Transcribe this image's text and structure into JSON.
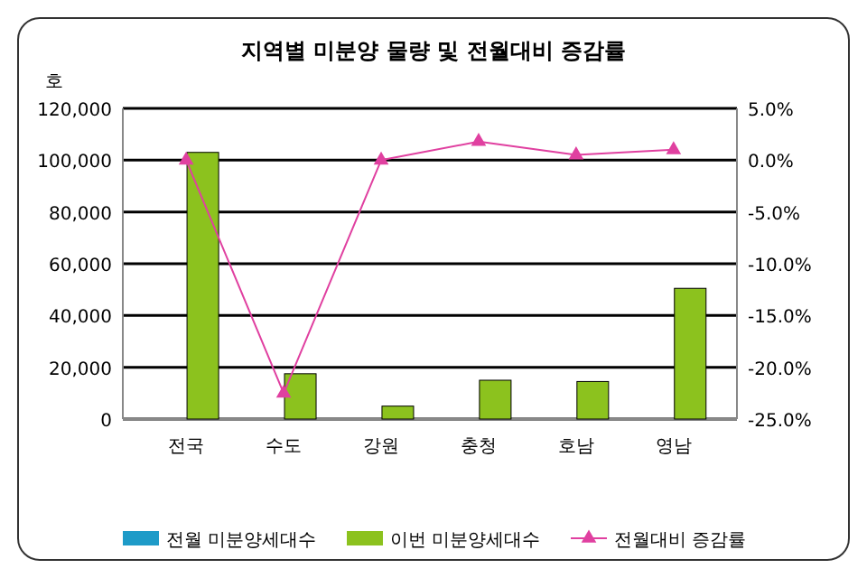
{
  "chart_data": {
    "type": "bar",
    "title": "지역별 미분양 물량 및 전월대비 증감률",
    "ylabel": "호",
    "categories": [
      "전국",
      "수도",
      "강원",
      "충청",
      "호남",
      "영남"
    ],
    "series": [
      {
        "name": "전월 미분양세대수",
        "color": "#1e9bc8",
        "values": [
          null,
          null,
          null,
          null,
          null,
          null
        ]
      },
      {
        "name": "이번 미분양세대수",
        "color": "#8cc21e",
        "values": [
          103000,
          17500,
          5000,
          15000,
          14500,
          50500
        ]
      },
      {
        "name": "전월대비 증감률",
        "type": "line",
        "axis": "y2",
        "color": "#e040a0",
        "marker": "triangle",
        "values": [
          0,
          -22.5,
          0,
          1.8,
          0.5,
          1.0
        ]
      }
    ],
    "ylim": [
      0,
      120000
    ],
    "yticks": [
      {
        "value": 0,
        "label": "0"
      },
      {
        "value": 20000,
        "label": "20,000"
      },
      {
        "value": 40000,
        "label": "40,000"
      },
      {
        "value": 60000,
        "label": "60,000"
      },
      {
        "value": 80000,
        "label": "80,000"
      },
      {
        "value": 100000,
        "label": "100,000"
      },
      {
        "value": 120000,
        "label": "120,000"
      }
    ],
    "y2lim": [
      -25,
      5
    ],
    "y2ticks": [
      {
        "value": 5,
        "label": "5.0%"
      },
      {
        "value": 0,
        "label": "0.0%"
      },
      {
        "value": -5,
        "label": "-5.0%"
      },
      {
        "value": -10,
        "label": "-10.0%"
      },
      {
        "value": -15,
        "label": "-15.0%"
      },
      {
        "value": -20,
        "label": "-20.0%"
      },
      {
        "value": -25,
        "label": "-25.0%"
      }
    ],
    "grid": "y",
    "legend": "bottom"
  }
}
